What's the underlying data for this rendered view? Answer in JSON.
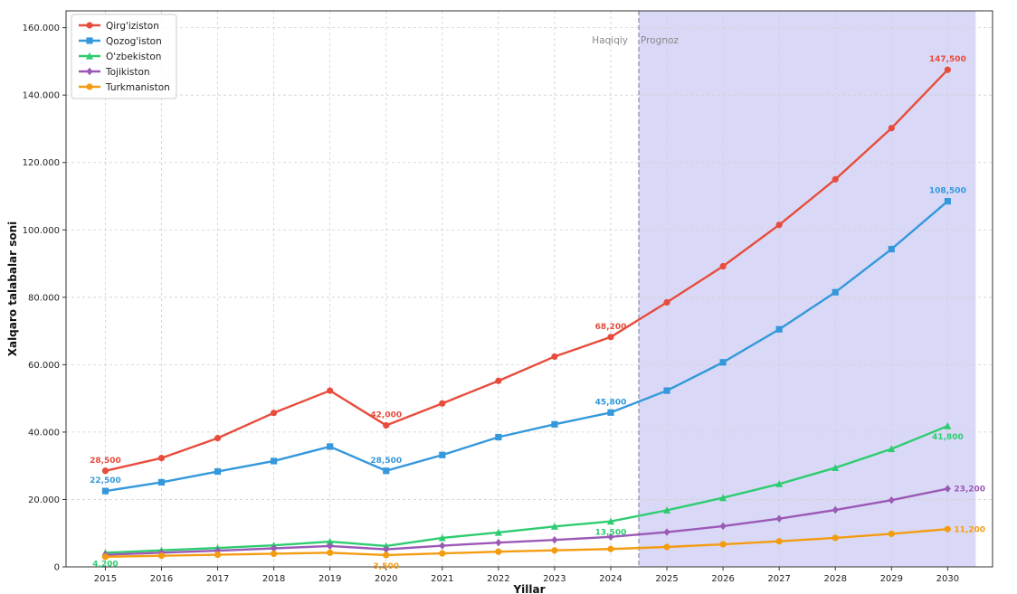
{
  "chart_data": {
    "type": "line",
    "title": "",
    "xlabel": "Yillar",
    "ylabel": "Xalqaro talabalar soni",
    "x": [
      2015,
      2016,
      2017,
      2018,
      2019,
      2020,
      2021,
      2022,
      2023,
      2024,
      2025,
      2026,
      2027,
      2028,
      2029,
      2030
    ],
    "xlim": [
      2014.3,
      2030.8
    ],
    "ylim": [
      0,
      165000
    ],
    "yticks": [
      0,
      20000,
      40000,
      60000,
      80000,
      100000,
      120000,
      140000,
      160000
    ],
    "ytick_labels": [
      "0",
      "20.000",
      "40.000",
      "60.000",
      "80.000",
      "100.000",
      "120.000",
      "140.000",
      "160.000"
    ],
    "grid": true,
    "legend_position": "top-left",
    "forecast_region": {
      "start": 2024.5,
      "end": 2030.5,
      "color": "#d9d9f7"
    },
    "region_labels": {
      "actual": "Haqiqiy",
      "forecast": "Prognoz"
    },
    "series": [
      {
        "name": "Qirg'iziston",
        "color": "#e74c3c",
        "marker": "circle",
        "values": [
          28500,
          32300,
          38200,
          45700,
          52300,
          42000,
          48500,
          55200,
          62400,
          68200,
          78500,
          89200,
          101500,
          115000,
          130200,
          147500
        ],
        "labels": [
          {
            "index": 0,
            "text": "28,500",
            "pos": "above"
          },
          {
            "index": 5,
            "text": "42,000",
            "pos": "above"
          },
          {
            "index": 9,
            "text": "68,200",
            "pos": "above"
          },
          {
            "index": 15,
            "text": "147,500",
            "pos": "above"
          }
        ]
      },
      {
        "name": "Qozog'iston",
        "color": "#3498db",
        "marker": "square",
        "values": [
          22500,
          25100,
          28300,
          31400,
          35700,
          28500,
          33200,
          38500,
          42300,
          45800,
          52300,
          60700,
          70500,
          81500,
          94300,
          108500
        ],
        "labels": [
          {
            "index": 0,
            "text": "22,500",
            "pos": "above"
          },
          {
            "index": 5,
            "text": "28,500",
            "pos": "above"
          },
          {
            "index": 9,
            "text": "45,800",
            "pos": "above"
          },
          {
            "index": 15,
            "text": "108,500",
            "pos": "above"
          }
        ]
      },
      {
        "name": "O'zbekiston",
        "color": "#2ecc71",
        "marker": "triangle",
        "values": [
          4200,
          4900,
          5600,
          6400,
          7500,
          6200,
          8600,
          10200,
          12000,
          13500,
          16800,
          20500,
          24600,
          29400,
          35000,
          41800
        ],
        "labels": [
          {
            "index": 0,
            "text": "4,200",
            "pos": "below"
          },
          {
            "index": 9,
            "text": "13,500",
            "pos": "below"
          },
          {
            "index": 15,
            "text": "41,800",
            "pos": "below"
          }
        ]
      },
      {
        "name": "Tojikiston",
        "color": "#9b59b6",
        "marker": "diamond",
        "values": [
          3600,
          4200,
          4800,
          5500,
          6200,
          5200,
          6300,
          7200,
          8000,
          8900,
          10300,
          12100,
          14300,
          16900,
          19800,
          23200
        ],
        "labels": [
          {
            "index": 15,
            "text": "23,200",
            "pos": "right"
          }
        ]
      },
      {
        "name": "Turkmaniston",
        "color": "#f39c12",
        "marker": "circle",
        "values": [
          3000,
          3300,
          3600,
          3900,
          4200,
          3500,
          4000,
          4500,
          4900,
          5300,
          5900,
          6700,
          7600,
          8600,
          9800,
          11200
        ],
        "labels": [
          {
            "index": 5,
            "text": "3,500",
            "pos": "below"
          },
          {
            "index": 15,
            "text": "11,200",
            "pos": "right"
          }
        ]
      }
    ]
  }
}
